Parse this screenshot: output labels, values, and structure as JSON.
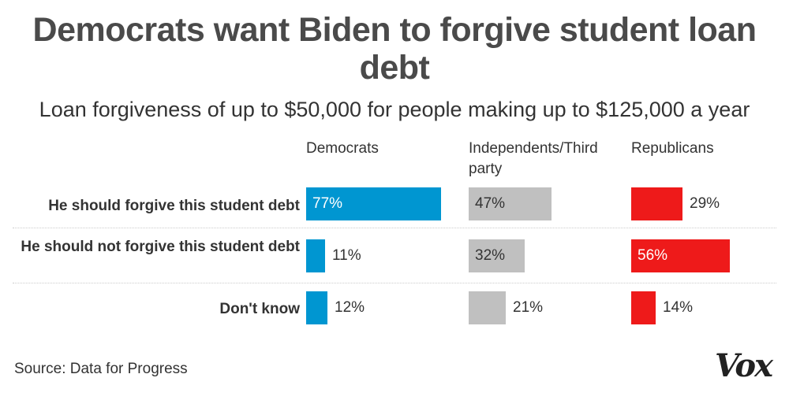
{
  "title": "Democrats want Biden to forgive student loan debt",
  "subtitle": "Loan forgiveness of up to $50,000 for people making up to $125,000 a year",
  "source": "Source: Data for Progress",
  "logo_text": "Vox",
  "colors": {
    "Democrats": "#0096d1",
    "Independents/Third party": "#c0c0c0",
    "Republicans": "#ee1a1a"
  },
  "chart_data": {
    "type": "bar",
    "categories": [
      "He should forgive this student debt",
      "He should not forgive this student debt",
      "Don't know"
    ],
    "series": [
      {
        "name": "Democrats",
        "values": [
          77,
          11,
          12
        ]
      },
      {
        "name": "Independents/Third party",
        "values": [
          47,
          32,
          21
        ]
      },
      {
        "name": "Republicans",
        "values": [
          29,
          56,
          14
        ]
      }
    ],
    "value_labels": [
      [
        "77%",
        "11%",
        "12%"
      ],
      [
        "47%",
        "32%",
        "21%"
      ],
      [
        "29%",
        "56%",
        "14%"
      ]
    ],
    "value_unit": "%",
    "xlim": [
      0,
      100
    ]
  }
}
